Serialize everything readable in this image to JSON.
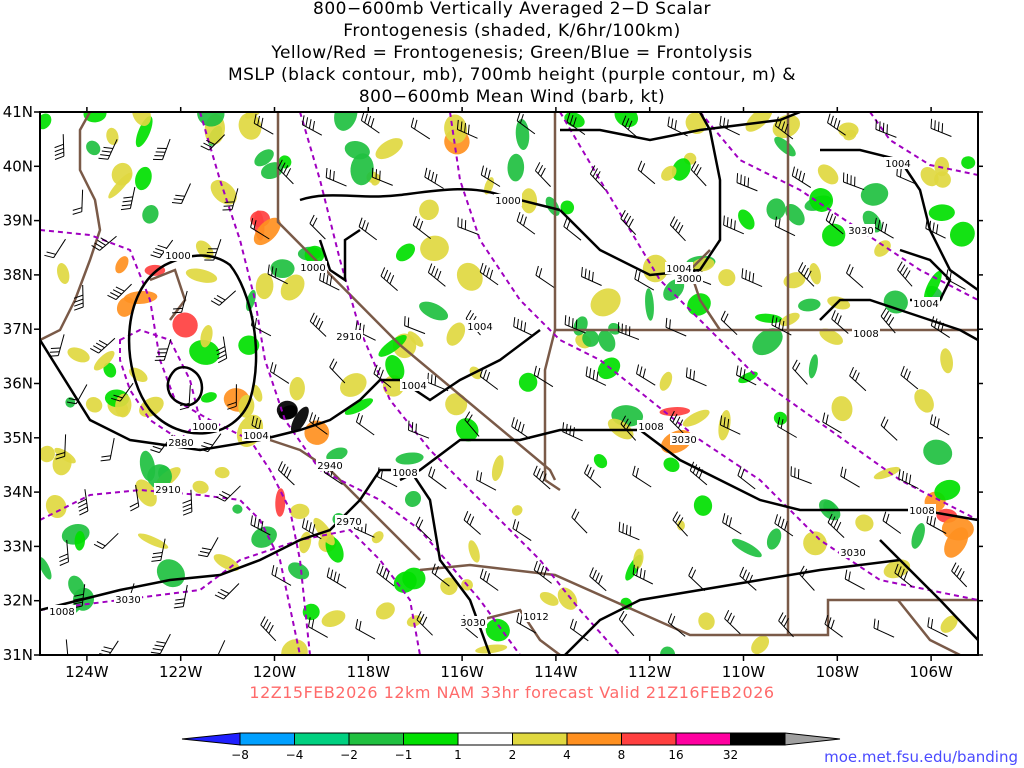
{
  "title_lines": [
    "800−600mb Vertically Averaged 2−D Scalar",
    "Frontogenesis (shaded, K/6hr/100km)",
    "Yellow/Red = Frontogenesis;  Green/Blue = Frontolysis",
    "MSLP (black contour, mb), 700mb height (purple contour, m) &",
    "800−600mb Mean Wind (barb, kt)"
  ],
  "lat_labels": [
    "41N",
    "40N",
    "39N",
    "38N",
    "37N",
    "36N",
    "35N",
    "34N",
    "33N",
    "32N",
    "31N"
  ],
  "lon_labels": [
    "124W",
    "122W",
    "120W",
    "118W",
    "116W",
    "114W",
    "112W",
    "110W",
    "108W",
    "106W"
  ],
  "mslp_labels": [
    "1000",
    "1000",
    "1000",
    "1000",
    "1004",
    "1004",
    "1004",
    "1004",
    "1004",
    "1004",
    "1008",
    "1008",
    "1008",
    "1008",
    "1008",
    "1012"
  ],
  "height_labels": [
    "2880",
    "2910",
    "2910",
    "2940",
    "2970",
    "3000",
    "3030",
    "3030",
    "3030",
    "3030",
    "3030"
  ],
  "footer": "12Z15FEB2026 12km NAM 33hr forecast Valid 21Z16FEB2026",
  "credit": "moe.met.fsu.edu/banding",
  "colorbar": {
    "labels": [
      "−8",
      "−4",
      "−2",
      "−1",
      "1",
      "2",
      "4",
      "8",
      "16",
      "32"
    ],
    "colors": [
      "#2020ff",
      "#00a0ff",
      "#00d080",
      "#20c040",
      "#00e000",
      "#ffffff",
      "#e0d840",
      "#ff9020",
      "#ff4040",
      "#ff00a0",
      "#000000",
      "#a0a0a0"
    ]
  },
  "colors": {
    "mslp": "#000000",
    "height": "#a000c0",
    "borders": "#7a5a48",
    "footer": "#ff6a6a",
    "credit": "#4a4aff"
  }
}
